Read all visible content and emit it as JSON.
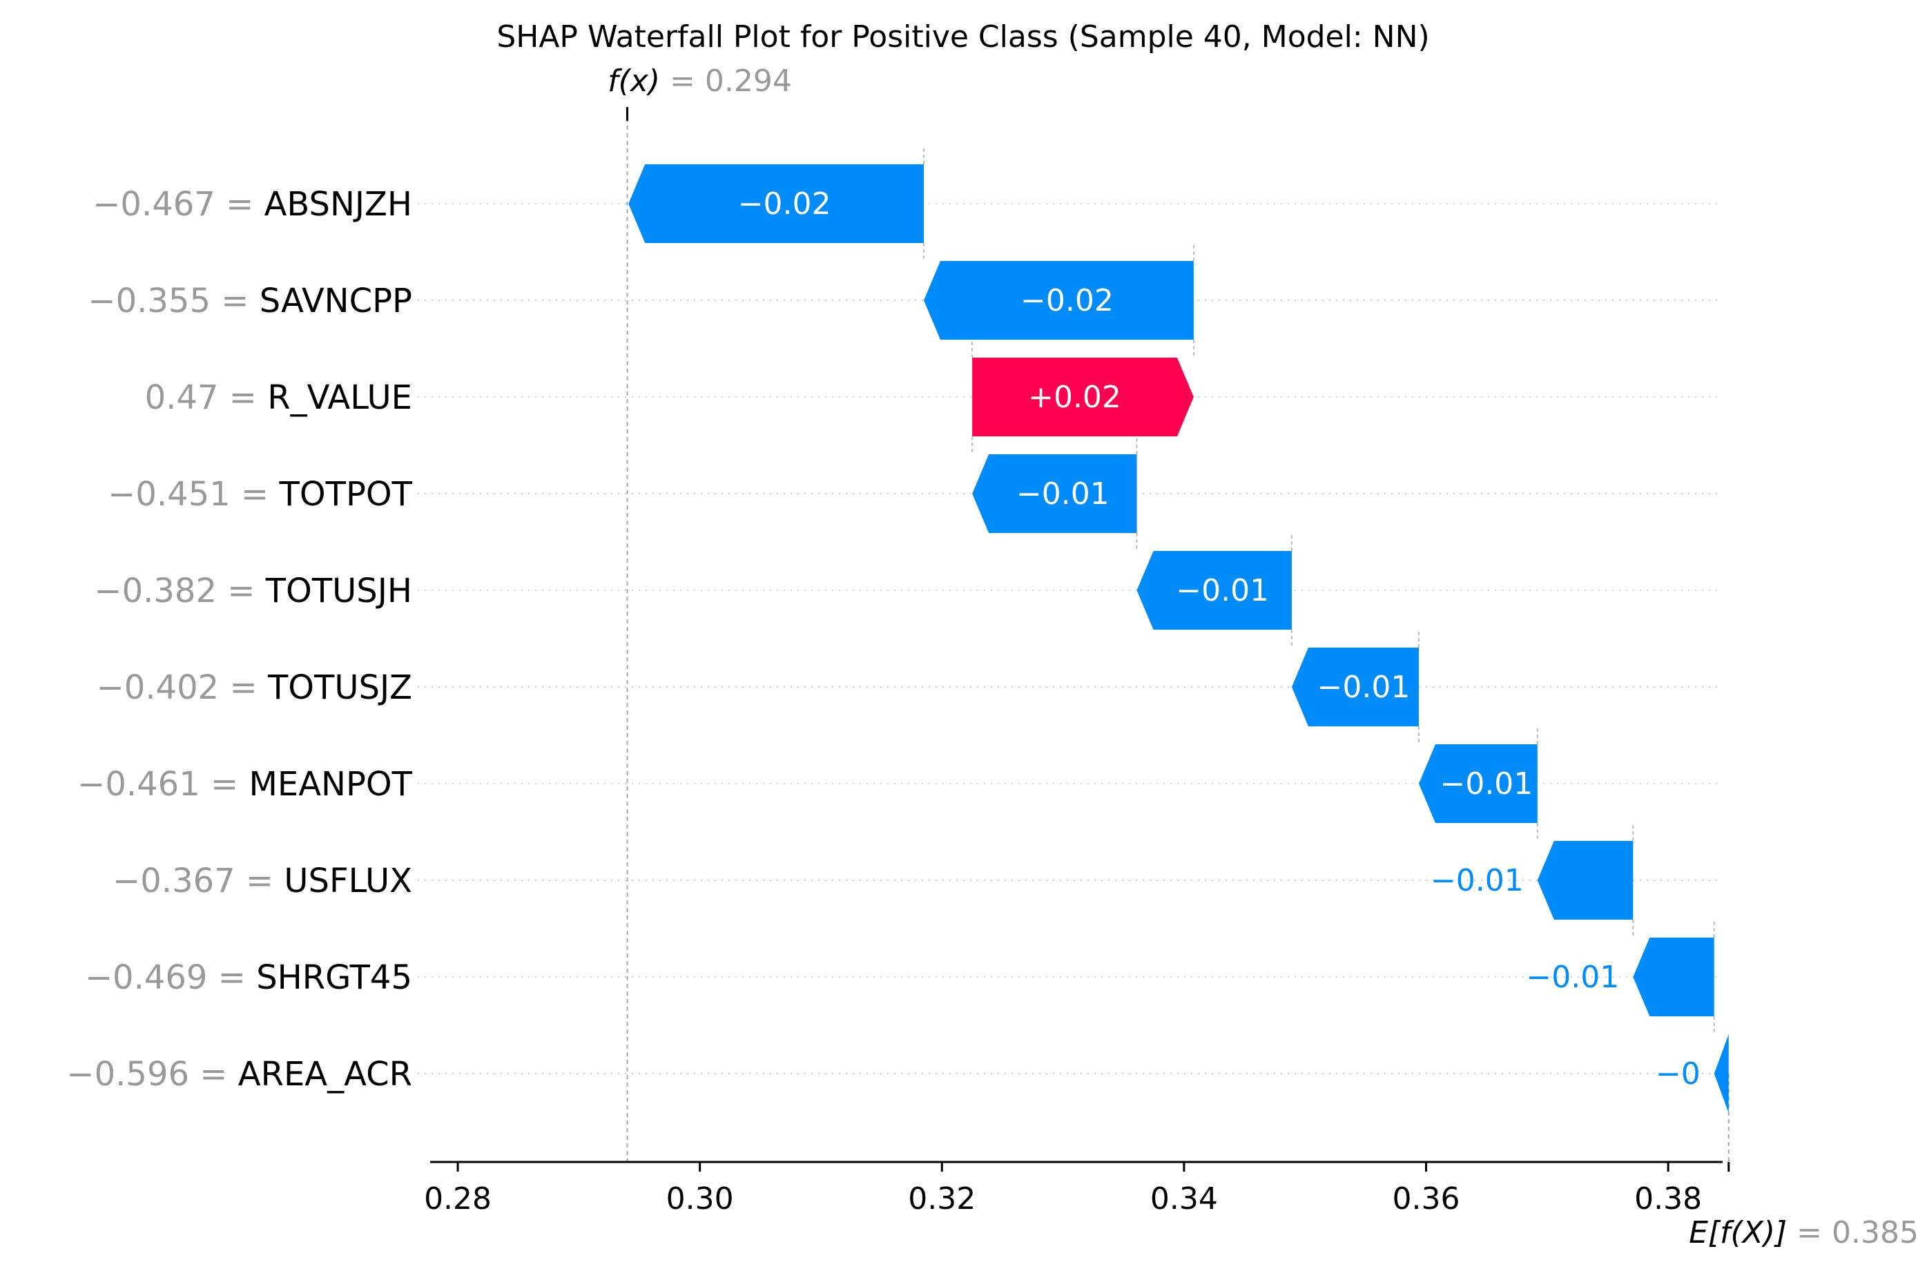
{
  "chart_data": {
    "type": "waterfall",
    "title": "SHAP Waterfall Plot for Positive Class (Sample 40, Model: NN)",
    "base_value": 0.385,
    "output_value": 0.294,
    "base_label": {
      "func": "E[f(X)]",
      "eq": " = 0.385"
    },
    "output_label": {
      "func": "f(x)",
      "eq": " = 0.294"
    },
    "xlim": [
      0.278,
      0.3845
    ],
    "xticks": [
      {
        "value": 0.28,
        "label": "0.28"
      },
      {
        "value": 0.3,
        "label": "0.30"
      },
      {
        "value": 0.32,
        "label": "0.32"
      },
      {
        "value": 0.34,
        "label": "0.34"
      },
      {
        "value": 0.36,
        "label": "0.36"
      },
      {
        "value": 0.38,
        "label": "0.38"
      }
    ],
    "colors": {
      "positive": "#ff0051",
      "negative": "#008bfb",
      "value_text": "#999999"
    },
    "features": [
      {
        "value_text": "−0.467",
        "name": "ABSNJZH",
        "start": 0.3185,
        "end": 0.2941,
        "label": "−0.02",
        "sign": "neg"
      },
      {
        "value_text": "−0.355",
        "name": "SAVNCPP",
        "start": 0.3408,
        "end": 0.3185,
        "label": "−0.02",
        "sign": "neg"
      },
      {
        "value_text": "0.47",
        "name": "R_VALUE",
        "start": 0.3225,
        "end": 0.3408,
        "label": "+0.02",
        "sign": "pos"
      },
      {
        "value_text": "−0.451",
        "name": "TOTPOT",
        "start": 0.3361,
        "end": 0.3225,
        "label": "−0.01",
        "sign": "neg"
      },
      {
        "value_text": "−0.382",
        "name": "TOTUSJH",
        "start": 0.3489,
        "end": 0.3361,
        "label": "−0.01",
        "sign": "neg"
      },
      {
        "value_text": "−0.402",
        "name": "TOTUSJZ",
        "start": 0.3594,
        "end": 0.3489,
        "label": "−0.01",
        "sign": "neg"
      },
      {
        "value_text": "−0.461",
        "name": "MEANPOT",
        "start": 0.3692,
        "end": 0.3594,
        "label": "−0.01",
        "sign": "neg"
      },
      {
        "value_text": "−0.367",
        "name": "USFLUX",
        "start": 0.3771,
        "end": 0.3692,
        "label": "−0.01",
        "sign": "neg"
      },
      {
        "value_text": "−0.469",
        "name": "SHRGT45",
        "start": 0.3838,
        "end": 0.3771,
        "label": "−0.01",
        "sign": "neg"
      },
      {
        "value_text": "−0.596",
        "name": "AREA_ACR",
        "start": 0.385,
        "end": 0.3838,
        "label": "−0",
        "sign": "neg"
      }
    ]
  }
}
